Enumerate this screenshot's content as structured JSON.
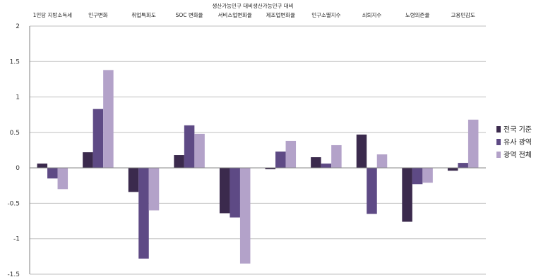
{
  "chart_data": {
    "type": "bar",
    "top_label": "생산가능인구 대비생산가능인구 대비",
    "categories": [
      "1인당 지방소득세",
      "인구변화",
      "취업특화도",
      "SOC 변화율",
      "서비스업변화율",
      "제조업변화율",
      "인구소멸지수",
      "쇠퇴지수",
      "노령의존율",
      "고용민감도"
    ],
    "series": [
      {
        "name": "전국 기준",
        "color": "#3b2a4d",
        "values": [
          0.06,
          0.22,
          -0.34,
          0.18,
          -0.64,
          -0.02,
          0.15,
          0.47,
          -0.76,
          -0.04
        ]
      },
      {
        "name": "유사 광역",
        "color": "#5e4a85",
        "values": [
          -0.15,
          0.83,
          -1.28,
          0.6,
          -0.7,
          0.23,
          0.06,
          -0.65,
          -0.23,
          0.07
        ]
      },
      {
        "name": "광역 전체",
        "color": "#b3a2c9",
        "values": [
          -0.3,
          1.38,
          -0.6,
          0.48,
          -1.35,
          0.38,
          0.32,
          0.19,
          -0.21,
          0.68
        ]
      }
    ],
    "ylim": [
      -1.5,
      2
    ],
    "yticks": [
      "-1.5",
      "-1",
      "-0.5",
      "0",
      "0.5",
      "1",
      "1.5",
      "2"
    ],
    "grid": true,
    "legend": "right"
  }
}
